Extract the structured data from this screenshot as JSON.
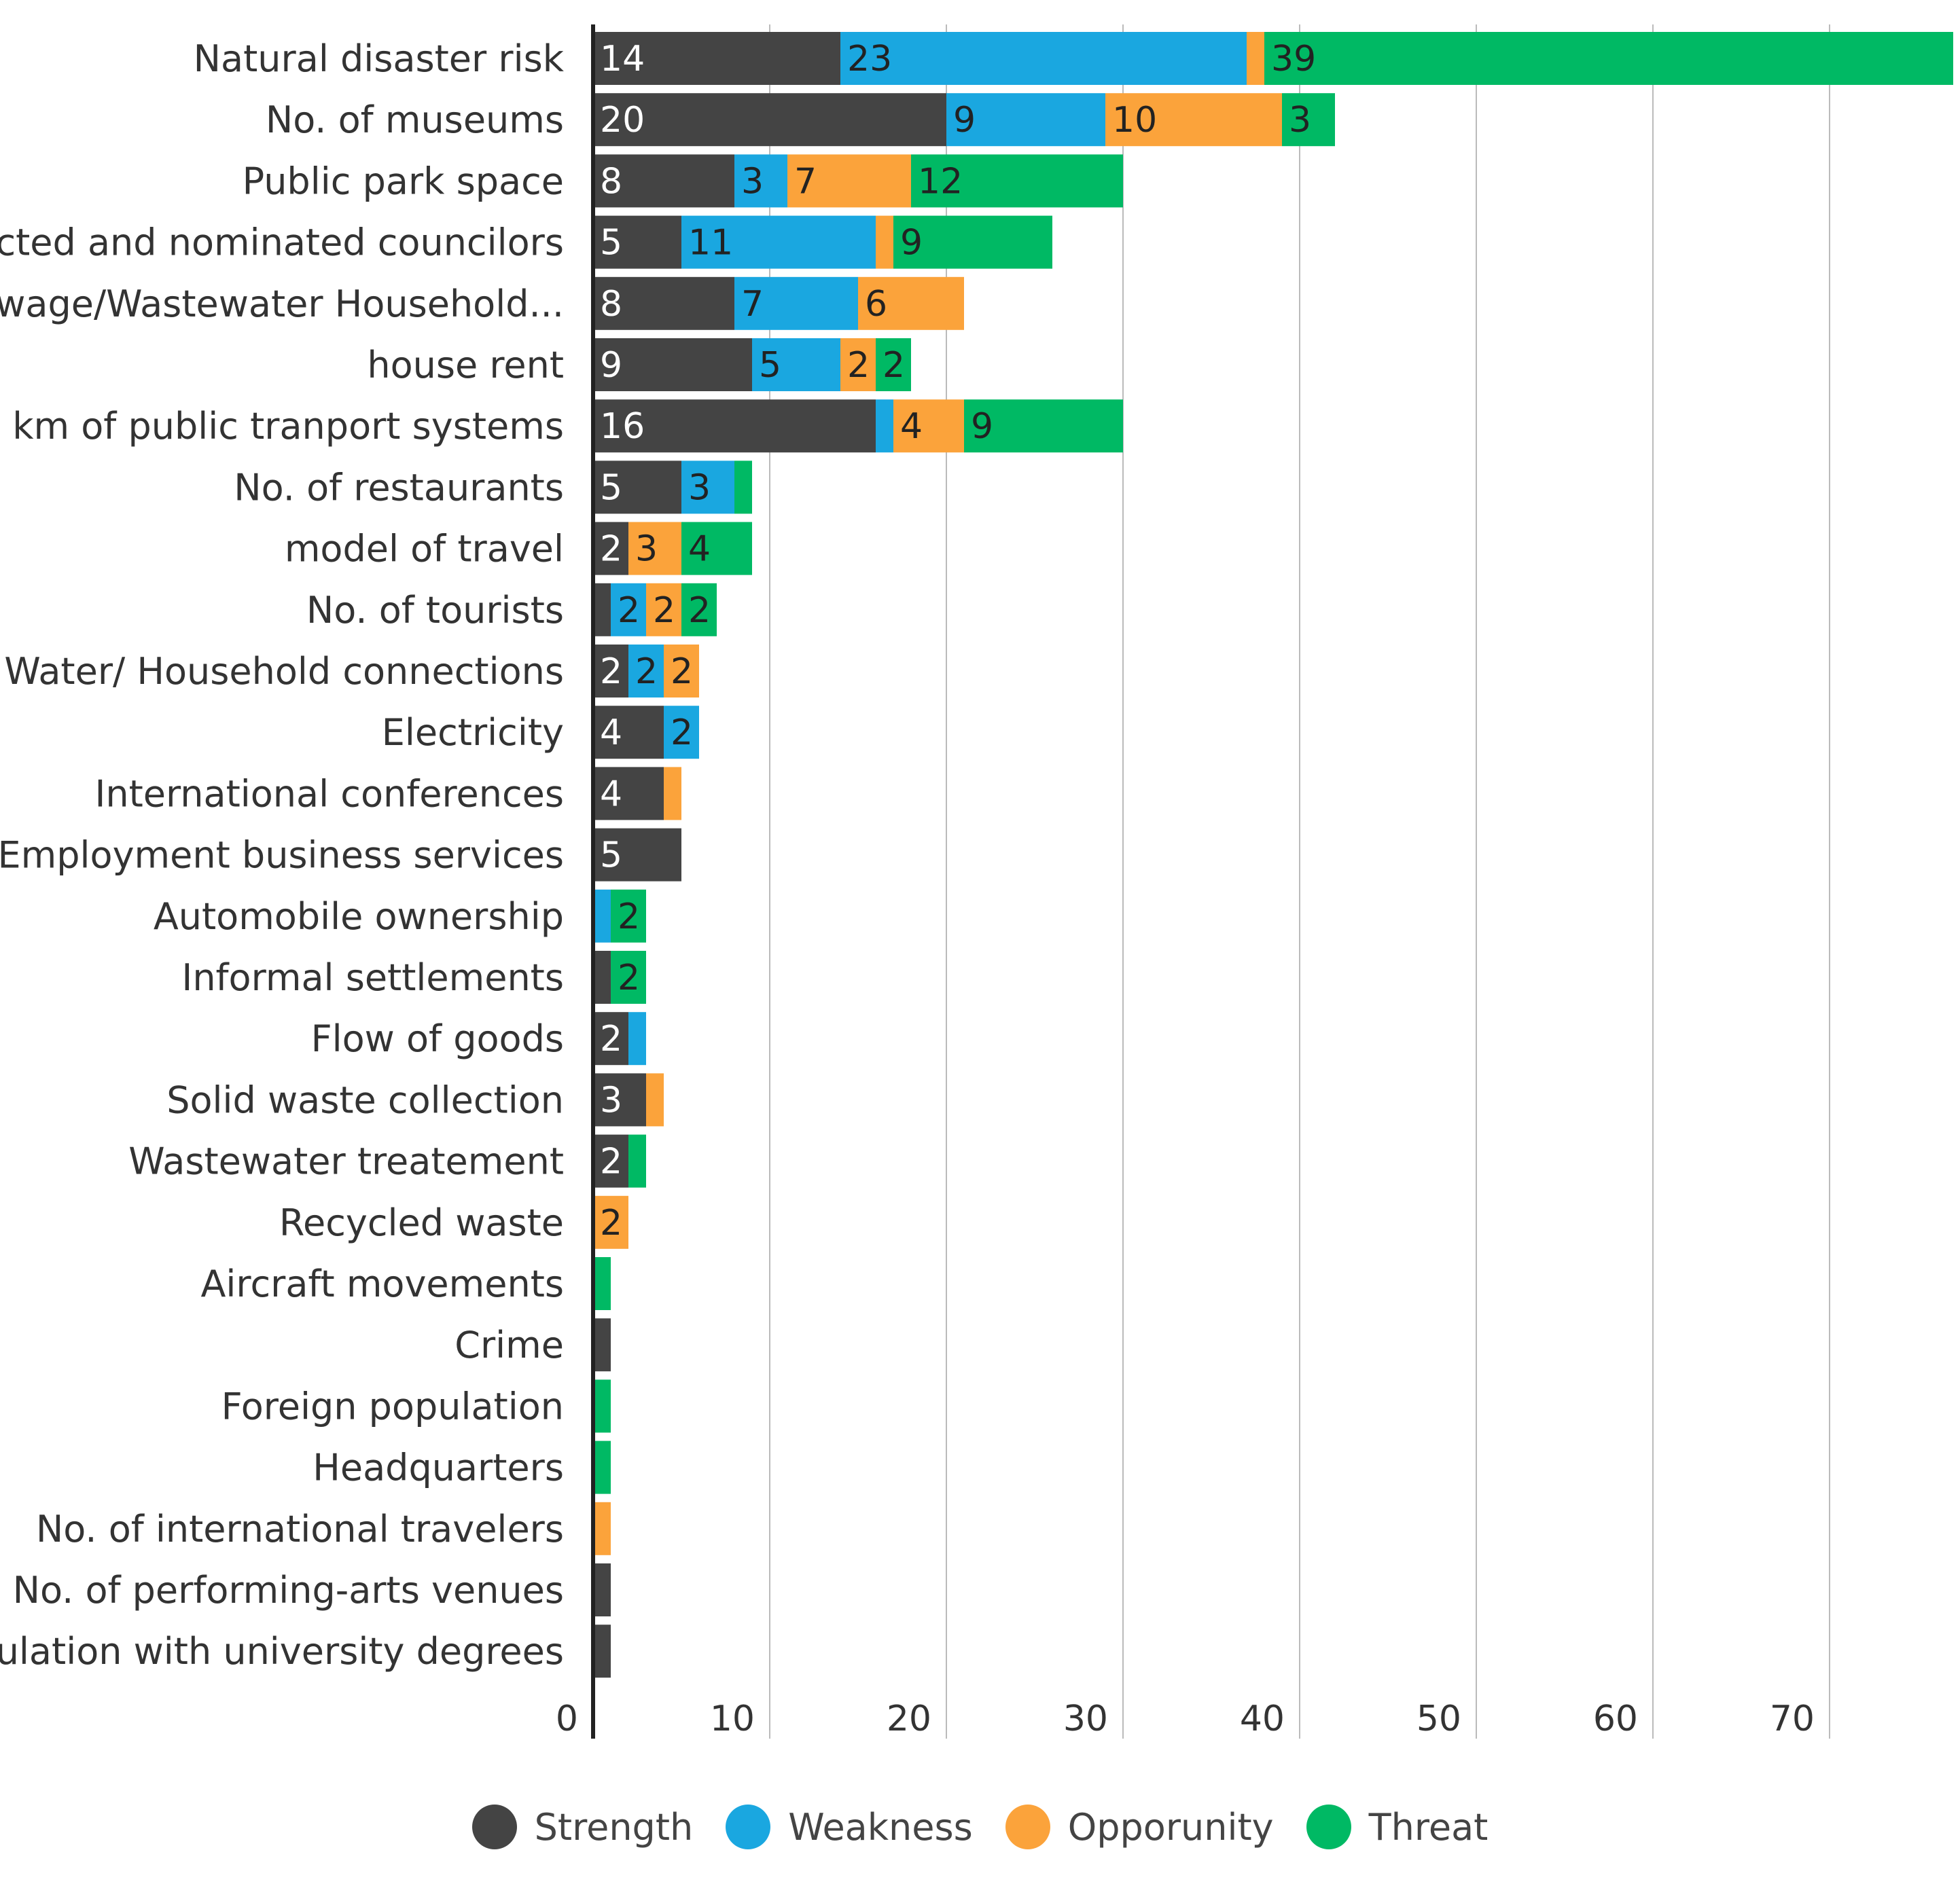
{
  "chart_data": {
    "type": "bar",
    "orientation": "horizontal",
    "stacked": true,
    "title": "",
    "xlabel": "",
    "ylabel": "",
    "xlim": [
      0,
      77
    ],
    "x_ticks": [
      0,
      10,
      20,
      30,
      40,
      50,
      60,
      70
    ],
    "grid": true,
    "legend_position": "bottom",
    "categories": [
      "Natural disaster risk",
      "No. of museums",
      "Public park space",
      "Elected and nominated councilors",
      "Sewage/Wastewater Household...",
      "house rent",
      "km of public tranport systems",
      "No. of restaurants",
      "model of travel",
      "No. of tourists",
      "Water/ Household connections",
      "Electricity",
      "International conferences",
      "Employment business services",
      "Automobile ownership",
      "Informal settlements",
      "Flow of goods",
      "Solid waste collection",
      "Wastewater treatement",
      "Recycled waste",
      "Aircraft movements",
      "Crime",
      "Foreign population",
      "Headquarters",
      "No. of international travelers",
      "No. of performing-arts venues",
      "population with university degrees"
    ],
    "series": [
      {
        "name": "Strength",
        "color": "#444444",
        "values": [
          14,
          20,
          8,
          5,
          8,
          9,
          16,
          5,
          2,
          1,
          2,
          4,
          4,
          5,
          0,
          1,
          2,
          3,
          2,
          0,
          0,
          1,
          0,
          0,
          0,
          1,
          1
        ],
        "labels": [
          "14",
          "20",
          "8",
          "5",
          "8",
          "9",
          "16",
          "5",
          "2",
          "",
          "2",
          "4",
          "4",
          "5",
          "",
          "",
          "2",
          "3",
          "2",
          "",
          "",
          "",
          "",
          "",
          "",
          "",
          ""
        ]
      },
      {
        "name": "Weakness",
        "color": "#1aa7e0",
        "values": [
          23,
          9,
          3,
          11,
          7,
          5,
          1,
          3,
          0,
          2,
          2,
          2,
          0,
          0,
          1,
          0,
          1,
          0,
          0,
          0,
          0,
          0,
          0,
          0,
          0,
          0,
          0
        ],
        "labels": [
          "23",
          "9",
          "3",
          "11",
          "7",
          "5",
          "",
          "3",
          "",
          "2",
          "2",
          "2",
          "",
          "",
          "",
          "",
          "",
          "",
          "",
          "",
          "",
          "",
          "",
          "",
          "",
          "",
          ""
        ]
      },
      {
        "name": "Opporunity",
        "color": "#fba33b",
        "values": [
          1,
          10,
          7,
          1,
          6,
          2,
          4,
          0,
          3,
          2,
          2,
          0,
          1,
          0,
          0,
          0,
          0,
          1,
          0,
          2,
          0,
          0,
          0,
          0,
          1,
          0,
          0
        ],
        "labels": [
          "",
          "10",
          "7",
          "",
          "6",
          "2",
          "4",
          "",
          "3",
          "2",
          "2",
          "",
          "",
          "",
          "",
          "",
          "",
          "",
          "",
          "2",
          "",
          "",
          "",
          "",
          "",
          "",
          ""
        ]
      },
      {
        "name": "Threat",
        "color": "#00b964",
        "values": [
          39,
          3,
          12,
          9,
          0,
          2,
          9,
          1,
          4,
          2,
          0,
          0,
          0,
          0,
          2,
          2,
          0,
          0,
          1,
          0,
          1,
          0,
          1,
          1,
          0,
          0,
          0
        ],
        "labels": [
          "39",
          "3",
          "12",
          "9",
          "",
          "2",
          "9",
          "",
          "4",
          "2",
          "",
          "",
          "",
          "",
          "2",
          "2",
          "",
          "",
          "",
          "",
          "",
          "",
          "",
          "",
          "",
          "",
          ""
        ]
      }
    ]
  }
}
